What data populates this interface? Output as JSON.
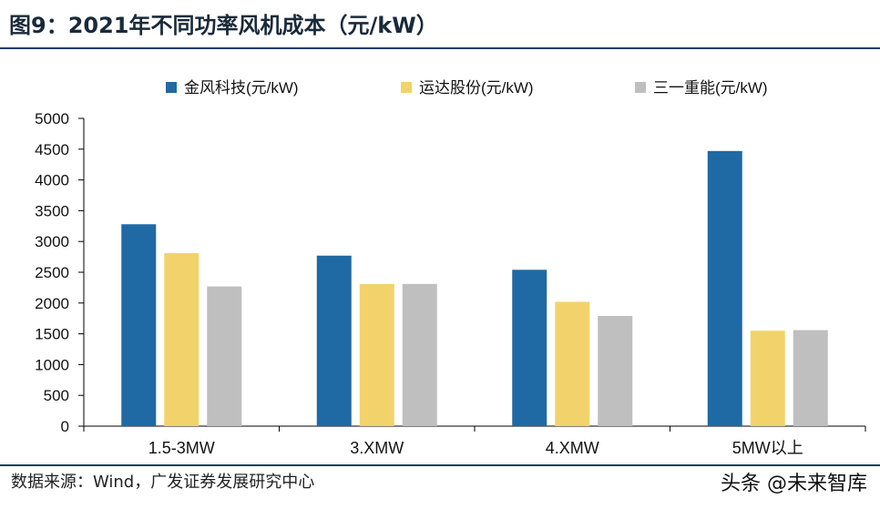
{
  "title": "图9：2021年不同功率风机成本（元/kW）",
  "source": "数据来源：Wind，广发证券发展研究中心",
  "watermark": "头条 @未来智库",
  "chart_data": {
    "type": "bar",
    "categories": [
      "1.5-3MW",
      "3.XMW",
      "4.XMW",
      "5MW以上"
    ],
    "series": [
      {
        "name": "金风科技(元/kW)",
        "color": "#1f6aa5",
        "values": [
          3280,
          2770,
          2540,
          4470
        ]
      },
      {
        "name": "运达股份(元/kW)",
        "color": "#f2d36b",
        "values": [
          2810,
          2310,
          2020,
          1550
        ]
      },
      {
        "name": "三一重能(元/kW)",
        "color": "#bfbfbf",
        "values": [
          2270,
          2310,
          1790,
          1560
        ]
      }
    ],
    "ylim": [
      0,
      5000
    ],
    "yticks": [
      0,
      500,
      1000,
      1500,
      2000,
      2500,
      3000,
      3500,
      4000,
      4500,
      5000
    ],
    "legend_position": "top",
    "grid": false
  }
}
